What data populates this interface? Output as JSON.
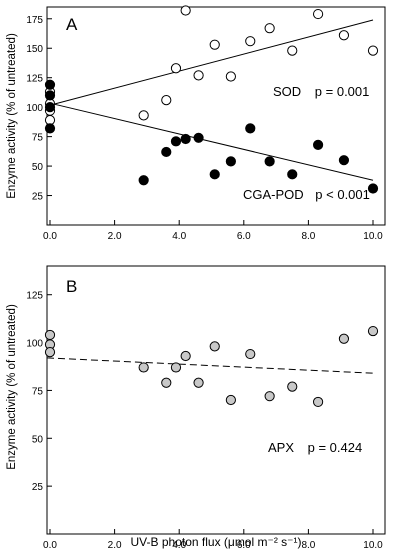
{
  "chart_data": [
    {
      "panel": "A",
      "type": "scatter",
      "ylabel": "Enzyme activity (% of untreated)",
      "xlim": [
        0,
        10
      ],
      "ylim": [
        0,
        185
      ],
      "xticks": [
        "0.0",
        "2.0",
        "4.0",
        "6.0",
        "8.0",
        "10.0"
      ],
      "yticks": [
        "25",
        "50",
        "75",
        "100",
        "125",
        "150",
        "175"
      ],
      "series": [
        {
          "name": "SOD",
          "marker": "open-circle",
          "x": [
            0,
            0,
            0,
            0,
            2.9,
            3.6,
            3.9,
            4.2,
            4.6,
            5.1,
            5.6,
            6.2,
            6.8,
            7.5,
            8.3,
            9.1,
            10.0
          ],
          "y": [
            97,
            113,
            89,
            103,
            93,
            106,
            133,
            182,
            127,
            153,
            126,
            156,
            167,
            148,
            179,
            161,
            148
          ],
          "fit": [
            101,
            174
          ],
          "stat": "p = 0.001"
        },
        {
          "name": "CGA-POD",
          "marker": "filled-circle",
          "x": [
            0,
            0,
            0,
            0,
            2.9,
            3.6,
            3.9,
            4.2,
            4.6,
            5.1,
            5.6,
            6.2,
            6.8,
            7.5,
            8.3,
            9.1,
            10.0
          ],
          "y": [
            119,
            110,
            100,
            82,
            38,
            62,
            71,
            73,
            74,
            43,
            54,
            82,
            54,
            43,
            68,
            55,
            31
          ],
          "fit": [
            104,
            38
          ],
          "stat": "p < 0.001"
        }
      ]
    },
    {
      "panel": "B",
      "type": "scatter",
      "xlabel": "UV-B photon flux (μmol m⁻² s⁻¹)",
      "ylabel": "Enzyme activity (% of untreated)",
      "xlim": [
        0,
        10
      ],
      "ylim": [
        0,
        140
      ],
      "xticks": [
        "0.0",
        "2.0",
        "4.0",
        "6.0",
        "8.0",
        "10.0"
      ],
      "yticks": [
        "25",
        "50",
        "75",
        "100",
        "125"
      ],
      "series": [
        {
          "name": "APX",
          "marker": "gray-circle",
          "x": [
            0,
            0,
            0,
            2.9,
            3.6,
            3.9,
            4.2,
            4.6,
            5.1,
            5.6,
            6.2,
            6.8,
            7.5,
            8.3,
            9.1,
            10.0
          ],
          "y": [
            104,
            99,
            95,
            87,
            79,
            87,
            93,
            79,
            98,
            70,
            94,
            72,
            77,
            69,
            102,
            106
          ],
          "fit": [
            92,
            84
          ],
          "fit_style": "dashed",
          "stat": "p = 0.424"
        }
      ]
    }
  ]
}
